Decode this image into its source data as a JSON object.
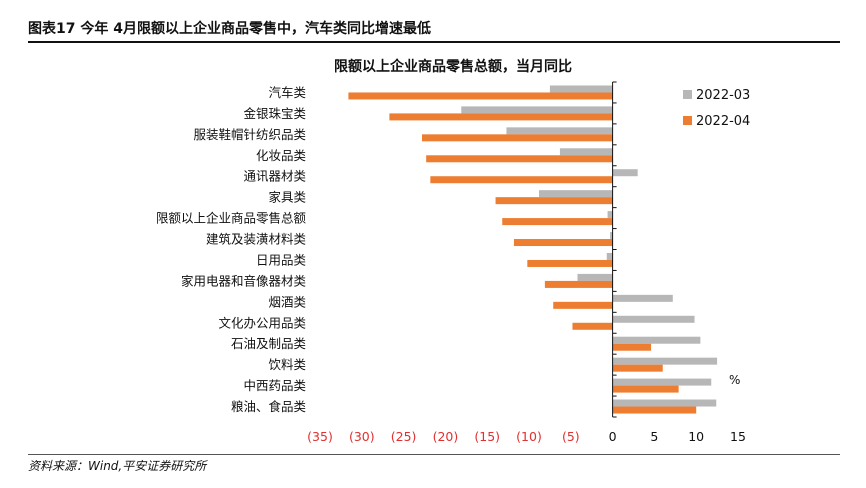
{
  "figure": {
    "header": "图表17    今年 4月限额以上企业商品零售中，汽车类同比增速最低",
    "source": "资料来源：Wind,平安证券研究所"
  },
  "colors": {
    "series_2022_03": "#b7b7b7",
    "series_2022_04": "#ed7d31",
    "negative_tick": "#e03030",
    "positive_tick": "#111111",
    "axis": "#111111"
  },
  "chart_data": {
    "type": "bar",
    "orientation": "horizontal",
    "title": "限额以上企业商品零售总额，当月同比",
    "unit": "%",
    "categories": [
      "汽车类",
      "金银珠宝类",
      "服装鞋帽针纺织品类",
      "化妆品类",
      "通讯器材类",
      "家具类",
      "限额以上企业商品零售总额",
      "建筑及装潢材料类",
      "日用品类",
      "家用电器和音像器材类",
      "烟酒类",
      "文化办公用品类",
      "石油及制品类",
      "饮料类",
      "中西药品类",
      "粮油、食品类"
    ],
    "series": [
      {
        "name": "2022-03",
        "values": [
          -7.5,
          -18.1,
          -12.7,
          -6.3,
          3.0,
          -8.8,
          -0.6,
          -0.3,
          -0.7,
          -4.2,
          7.2,
          9.8,
          10.5,
          12.5,
          11.8,
          12.4
        ]
      },
      {
        "name": "2022-04",
        "values": [
          -31.6,
          -26.7,
          -22.8,
          -22.3,
          -21.8,
          -14.0,
          -13.2,
          -11.8,
          -10.2,
          -8.1,
          -7.1,
          -4.8,
          4.6,
          6.0,
          7.9,
          10.0
        ]
      }
    ],
    "xlim": [
      -35,
      15
    ],
    "xticks": [
      -35,
      -30,
      -25,
      -20,
      -15,
      -10,
      -5,
      0,
      5,
      10,
      15
    ],
    "xtick_labels": [
      "(35)",
      "(30)",
      "(25)",
      "(20)",
      "(15)",
      "(10)",
      "(5)",
      "0",
      "5",
      "10",
      "15"
    ],
    "legend_position": "top-right",
    "grid": false
  }
}
